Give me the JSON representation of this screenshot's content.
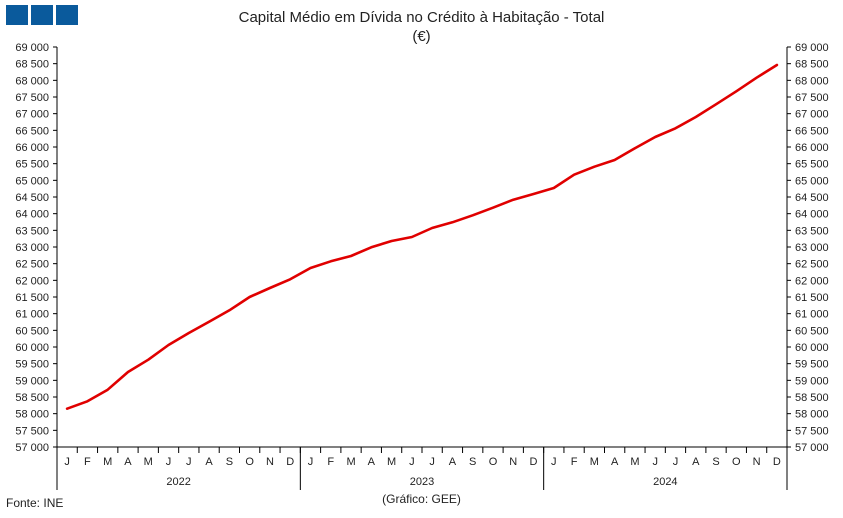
{
  "colors": {
    "line": "#e00000",
    "logo": "#0a5a9c",
    "axis": "#000000"
  },
  "footer": {
    "source": "Fonte: INE",
    "credit": "(Gráfico: GEE)"
  },
  "chart_data": {
    "type": "line",
    "title": "Capital Médio em Dívida no Crédito à Habitação - Total",
    "unit": "(€)",
    "xlabel": "",
    "ylabel": "",
    "ylim": [
      57000,
      69000
    ],
    "yticks": [
      "57 000",
      "57 500",
      "58 000",
      "58 500",
      "59 000",
      "59 500",
      "60 000",
      "60 500",
      "61 000",
      "61 500",
      "62 000",
      "62 500",
      "63 000",
      "63 500",
      "64 000",
      "64 500",
      "65 000",
      "65 500",
      "66 000",
      "66 500",
      "67 000",
      "67 500",
      "68 000",
      "68 500",
      "69 000"
    ],
    "ytick_values": [
      57000,
      57500,
      58000,
      58500,
      59000,
      59500,
      60000,
      60500,
      61000,
      61500,
      62000,
      62500,
      63000,
      63500,
      64000,
      64500,
      65000,
      65500,
      66000,
      66500,
      67000,
      67500,
      68000,
      68500,
      69000
    ],
    "month_labels": [
      "J",
      "F",
      "M",
      "A",
      "M",
      "J",
      "J",
      "A",
      "S",
      "O",
      "N",
      "D"
    ],
    "years": [
      "2022",
      "2023",
      "2024"
    ],
    "grid": false,
    "legend": "none",
    "series": [
      {
        "values": [
          58150,
          58370,
          58720,
          59250,
          59620,
          60060,
          60420,
          60760,
          61100,
          61500,
          61770,
          62030,
          62370,
          62570,
          62730,
          62990,
          63180,
          63300,
          63570,
          63740,
          63950,
          64180,
          64420,
          64590,
          64770,
          65170,
          65410,
          65610,
          65960,
          66300,
          66560,
          66900,
          67280,
          67670,
          68080,
          68460
        ]
      }
    ]
  }
}
